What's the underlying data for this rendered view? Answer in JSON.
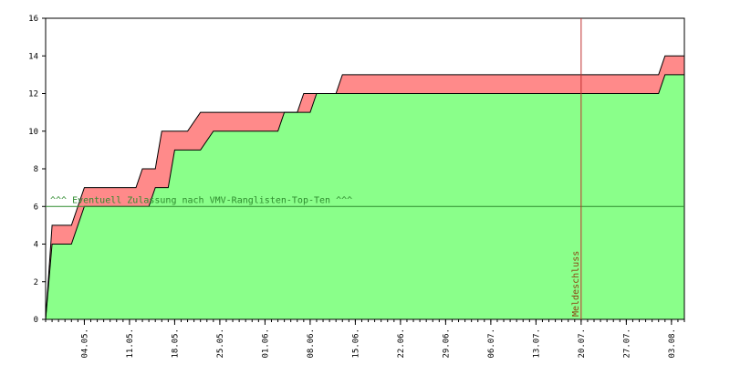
{
  "chart_data": {
    "type": "area",
    "title": "",
    "xlabel": "",
    "ylabel": "",
    "ylim": [
      0,
      16
    ],
    "yticks": [
      0,
      2,
      4,
      6,
      8,
      10,
      12,
      14,
      16
    ],
    "x_range": [
      "2024-04-28",
      "2024-08-05"
    ],
    "x_tick_dates": [
      "2024-05-04",
      "2024-05-11",
      "2024-05-18",
      "2024-05-25",
      "2024-06-01",
      "2024-06-08",
      "2024-06-15",
      "2024-06-22",
      "2024-06-29",
      "2024-07-06",
      "2024-07-13",
      "2024-07-20",
      "2024-07-27",
      "2024-08-03"
    ],
    "x_tick_labels": [
      "04.05.",
      "11.05.",
      "18.05.",
      "25.05.",
      "01.06.",
      "08.06.",
      "15.06.",
      "22.06.",
      "29.06.",
      "06.07.",
      "13.07.",
      "20.07.",
      "27.07.",
      "03.08."
    ],
    "grid": false,
    "series": [
      {
        "role": "upper",
        "color": "#ff8a8a",
        "points": [
          [
            "2024-04-28",
            0
          ],
          [
            "2024-04-29",
            5
          ],
          [
            "2024-05-02",
            5
          ],
          [
            "2024-05-04",
            7
          ],
          [
            "2024-05-12",
            7
          ],
          [
            "2024-05-13",
            8
          ],
          [
            "2024-05-15",
            8
          ],
          [
            "2024-05-16",
            10
          ],
          [
            "2024-05-20",
            10
          ],
          [
            "2024-05-22",
            11
          ],
          [
            "2024-06-06",
            11
          ],
          [
            "2024-06-07",
            12
          ],
          [
            "2024-06-12",
            12
          ],
          [
            "2024-06-13",
            13
          ],
          [
            "2024-08-01",
            13
          ],
          [
            "2024-08-02",
            14
          ],
          [
            "2024-08-05",
            14
          ]
        ]
      },
      {
        "role": "lower",
        "color": "#8aff8a",
        "points": [
          [
            "2024-04-28",
            0
          ],
          [
            "2024-04-29",
            4
          ],
          [
            "2024-05-02",
            4
          ],
          [
            "2024-05-04",
            6
          ],
          [
            "2024-05-14",
            6
          ],
          [
            "2024-05-15",
            7
          ],
          [
            "2024-05-17",
            7
          ],
          [
            "2024-05-18",
            9
          ],
          [
            "2024-05-22",
            9
          ],
          [
            "2024-05-24",
            10
          ],
          [
            "2024-06-03",
            10
          ],
          [
            "2024-06-04",
            11
          ],
          [
            "2024-06-08",
            11
          ],
          [
            "2024-06-09",
            12
          ],
          [
            "2024-08-01",
            12
          ],
          [
            "2024-08-02",
            13
          ],
          [
            "2024-08-05",
            13
          ]
        ]
      }
    ],
    "hline": {
      "y": 6,
      "label": "^^^ Eventuell Zulassung nach VMV-Ranglisten-Top-Ten ^^^",
      "color": "#2e8b2e"
    },
    "vline": {
      "x": "2024-07-20",
      "label": "Meldeschluss",
      "color": "#c23030"
    }
  }
}
